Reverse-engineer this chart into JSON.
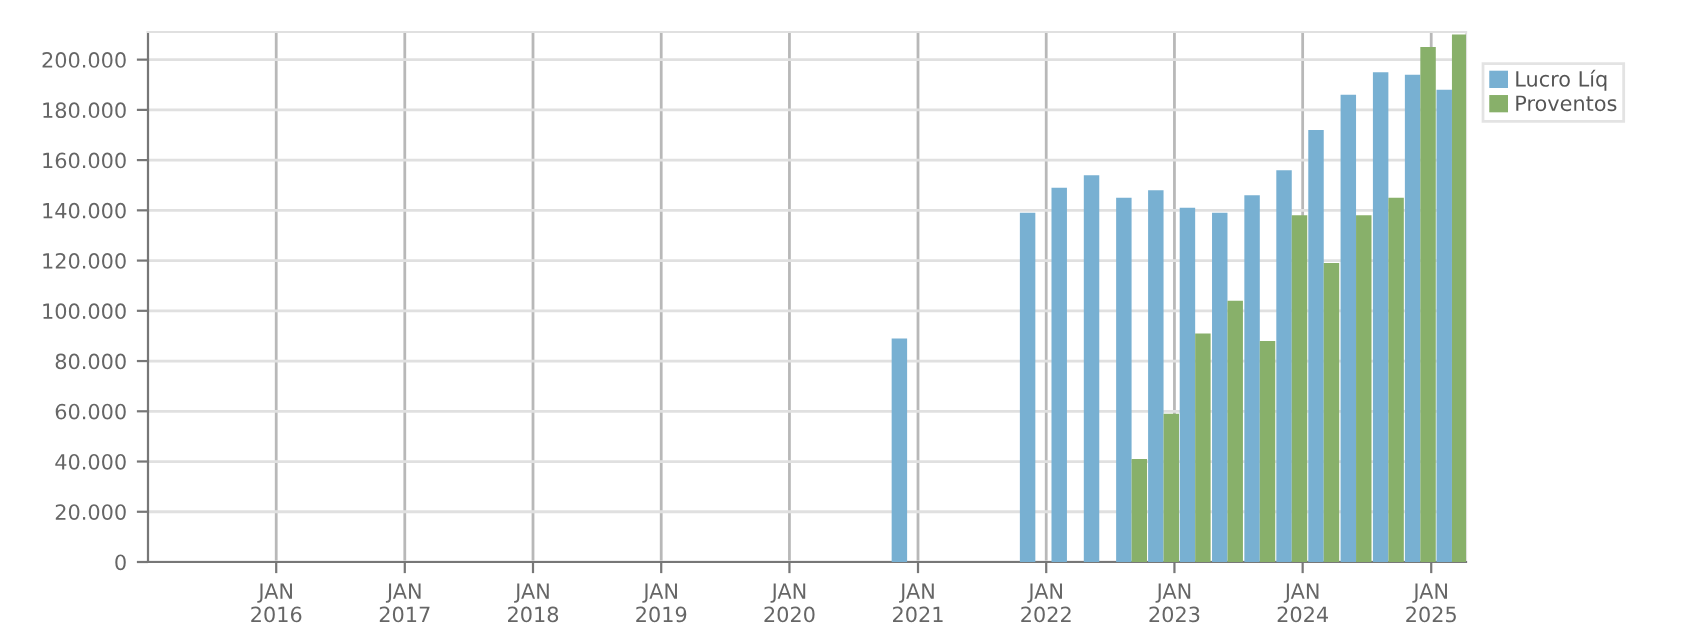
{
  "chart_data": {
    "type": "bar",
    "x": [
      "2020-12",
      "2021-12",
      "2022-03",
      "2022-06",
      "2022-09",
      "2022-12",
      "2023-03",
      "2023-06",
      "2023-09",
      "2023-12",
      "2024-03",
      "2024-06",
      "2024-09",
      "2024-12",
      "2025-03"
    ],
    "series": [
      {
        "name": "Lucro Líq",
        "color": "#78b0d2",
        "values": [
          89000,
          139000,
          149000,
          154000,
          145000,
          148000,
          141000,
          139000,
          146000,
          156000,
          172000,
          186000,
          195000,
          194000,
          188000
        ]
      },
      {
        "name": "Proventos",
        "color": "#88b06a",
        "values": [
          null,
          null,
          null,
          null,
          41000,
          59000,
          91000,
          104000,
          88000,
          138000,
          119000,
          138000,
          145000,
          205000,
          210000
        ]
      }
    ],
    "xlim": [
      "2015-01",
      "2025-04-10"
    ],
    "xticks": [
      {
        "value": "2016-01",
        "label": "JAN\n2016"
      },
      {
        "value": "2017-01",
        "label": "JAN\n2017"
      },
      {
        "value": "2018-01",
        "label": "JAN\n2018"
      },
      {
        "value": "2019-01",
        "label": "JAN\n2019"
      },
      {
        "value": "2020-01",
        "label": "JAN\n2020"
      },
      {
        "value": "2021-01",
        "label": "JAN\n2021"
      },
      {
        "value": "2022-01",
        "label": "JAN\n2022"
      },
      {
        "value": "2023-01",
        "label": "JAN\n2023"
      },
      {
        "value": "2024-01",
        "label": "JAN\n2024"
      },
      {
        "value": "2025-01",
        "label": "JAN\n2025"
      }
    ],
    "ylim": [
      0,
      211000
    ],
    "yticks": [
      {
        "value": 0,
        "label": "0"
      },
      {
        "value": 20000,
        "label": "20.000"
      },
      {
        "value": 40000,
        "label": "40.000"
      },
      {
        "value": 60000,
        "label": "60.000"
      },
      {
        "value": 80000,
        "label": "80.000"
      },
      {
        "value": 100000,
        "label": "100.000"
      },
      {
        "value": 120000,
        "label": "120.000"
      },
      {
        "value": 140000,
        "label": "140.000"
      },
      {
        "value": 160000,
        "label": "160.000"
      },
      {
        "value": 180000,
        "label": "180.000"
      },
      {
        "value": 200000,
        "label": "200.000"
      }
    ],
    "grid": true,
    "legend": "top right"
  }
}
